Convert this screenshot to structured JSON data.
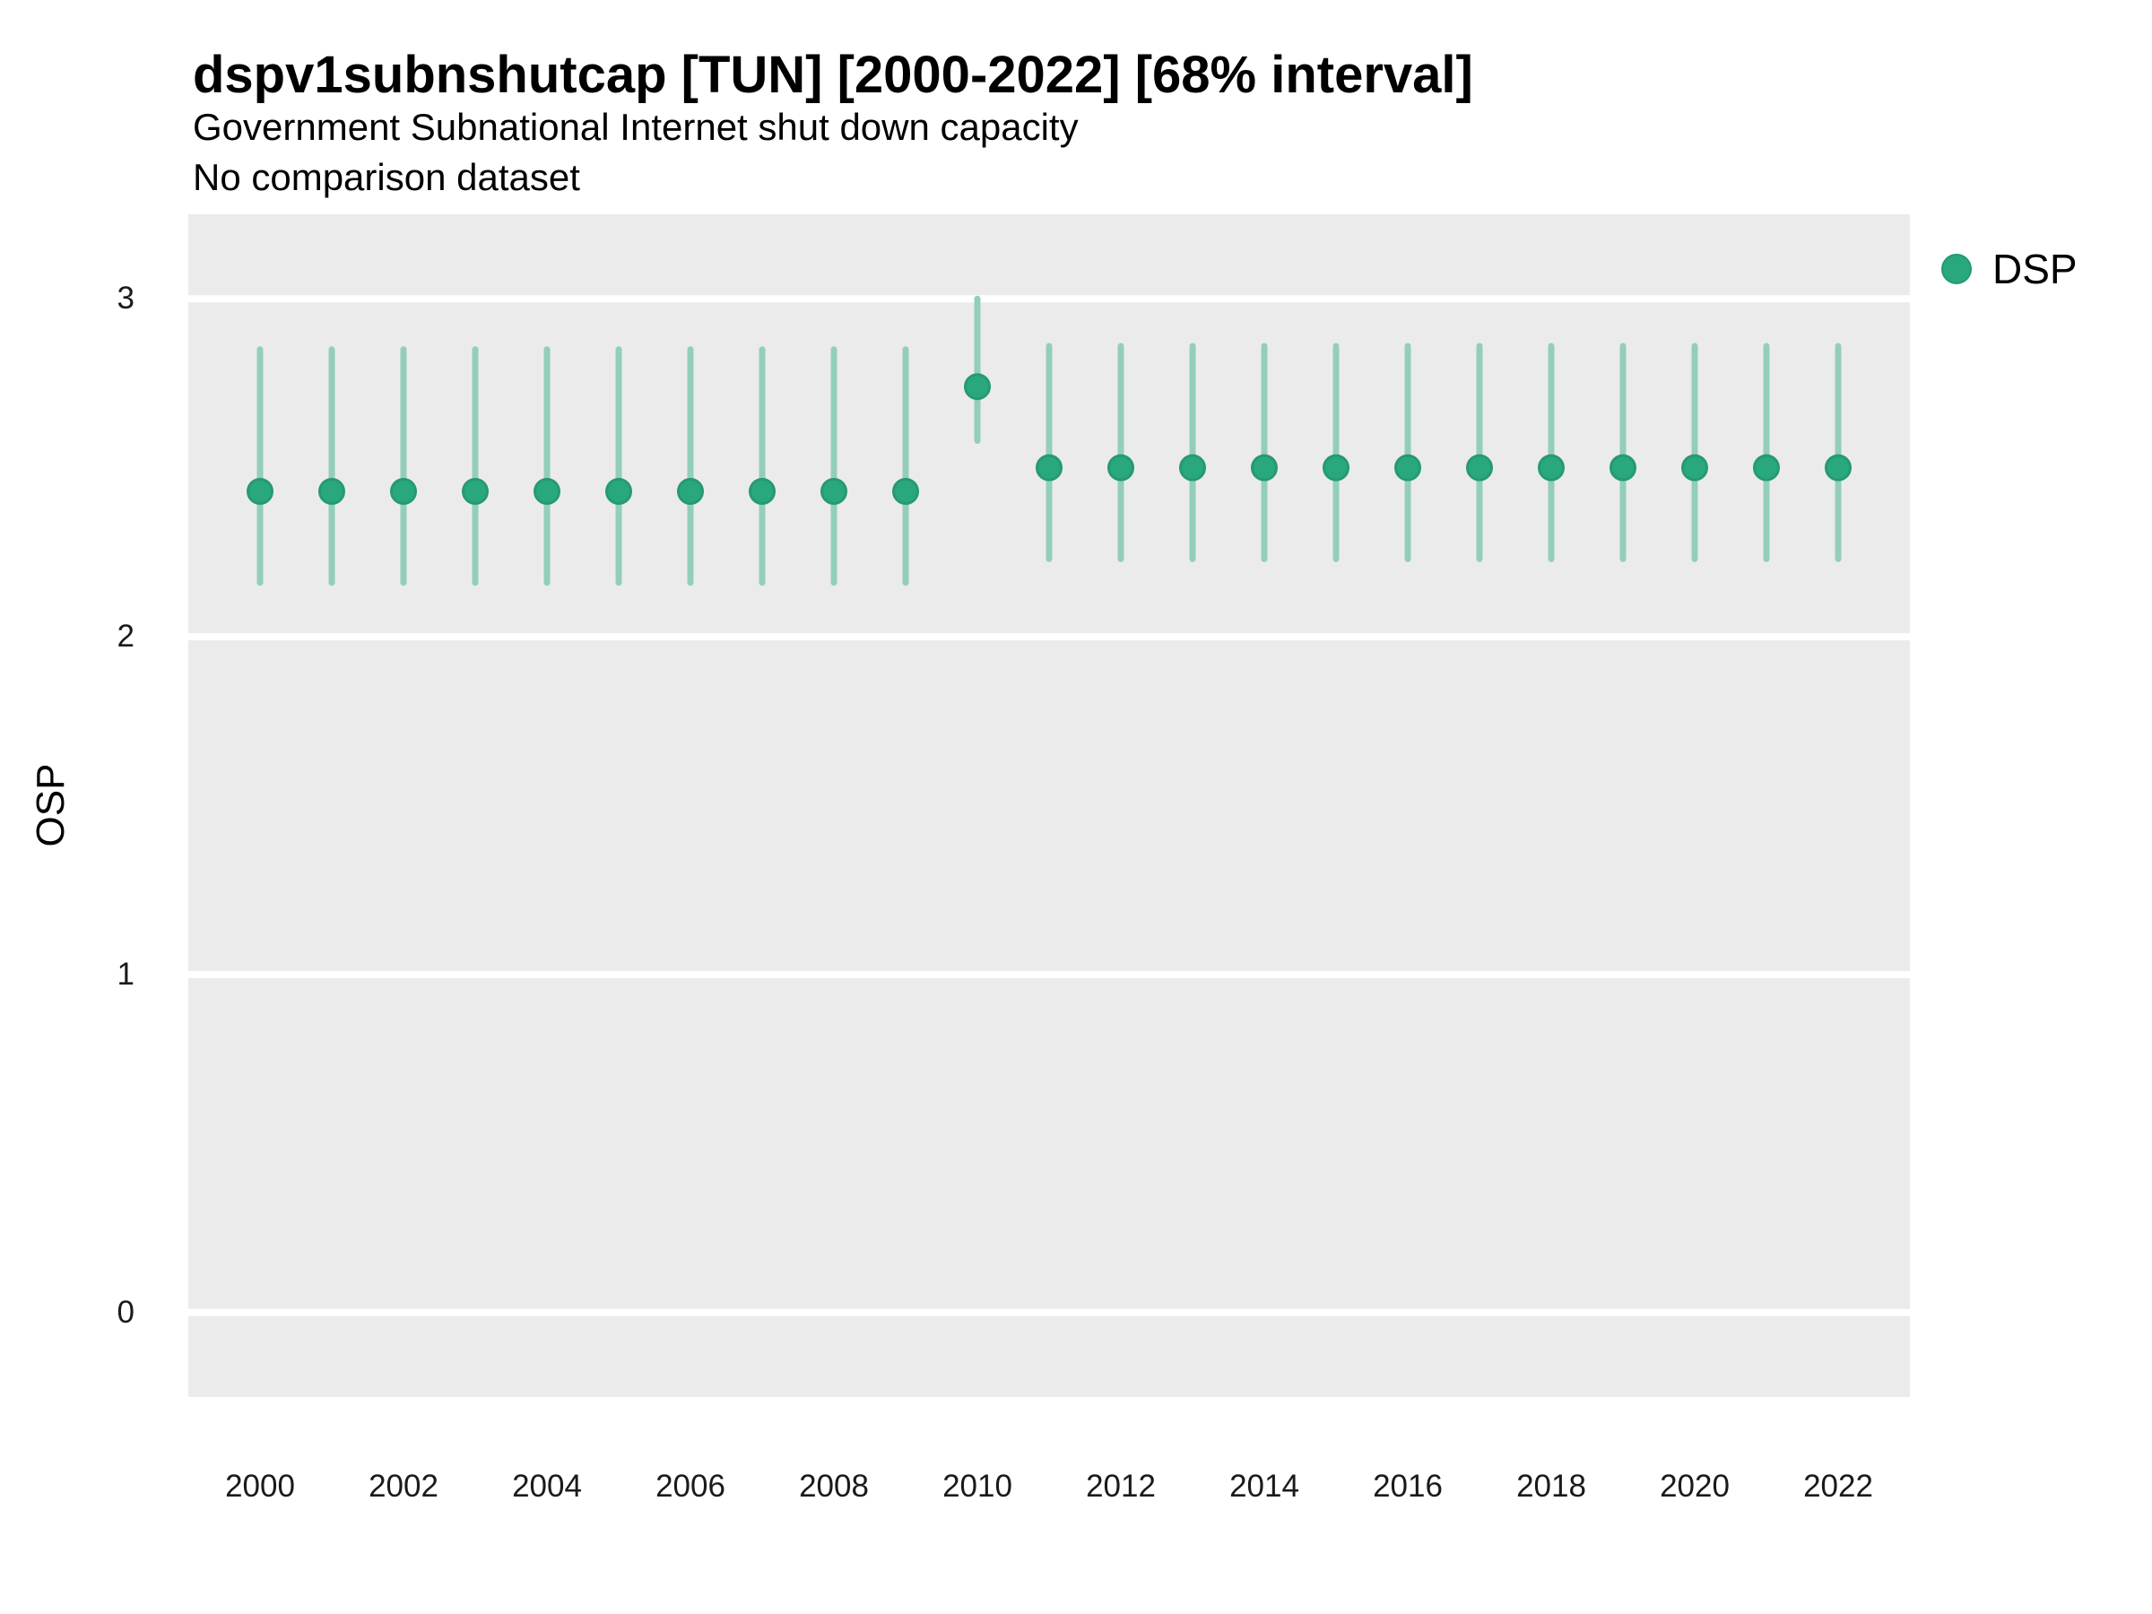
{
  "header": {
    "title": "dspv1subnshutcap [TUN] [2000-2022] [68% interval]",
    "subtitle": "Government Subnational Internet shut down capacity",
    "comparison_note": "No comparison dataset"
  },
  "legend": {
    "items": [
      {
        "label": "DSP",
        "color": "#2aa87d"
      }
    ]
  },
  "chart_data": {
    "type": "pointrange",
    "title": "dspv1subnshutcap [TUN] [2000-2022] [68% interval]",
    "subtitle": "Government Subnational Internet shut down capacity",
    "note": "No comparison dataset",
    "interval_label": "68% interval",
    "xlabel": "",
    "ylabel": "OSP",
    "x": [
      2000,
      2001,
      2002,
      2003,
      2004,
      2005,
      2006,
      2007,
      2008,
      2009,
      2010,
      2011,
      2012,
      2013,
      2014,
      2015,
      2016,
      2017,
      2018,
      2019,
      2020,
      2021,
      2022
    ],
    "series": [
      {
        "name": "DSP",
        "estimates": [
          2.43,
          2.43,
          2.43,
          2.43,
          2.43,
          2.43,
          2.43,
          2.43,
          2.43,
          2.43,
          2.74,
          2.5,
          2.5,
          2.5,
          2.5,
          2.5,
          2.5,
          2.5,
          2.5,
          2.5,
          2.5,
          2.5,
          2.5
        ],
        "lower": [
          2.16,
          2.16,
          2.16,
          2.16,
          2.16,
          2.16,
          2.16,
          2.16,
          2.16,
          2.16,
          2.58,
          2.23,
          2.23,
          2.23,
          2.23,
          2.23,
          2.23,
          2.23,
          2.23,
          2.23,
          2.23,
          2.23,
          2.23
        ],
        "upper": [
          2.85,
          2.85,
          2.85,
          2.85,
          2.85,
          2.85,
          2.85,
          2.85,
          2.85,
          2.85,
          3.0,
          2.86,
          2.86,
          2.86,
          2.86,
          2.86,
          2.86,
          2.86,
          2.86,
          2.86,
          2.86,
          2.86,
          2.86
        ]
      }
    ],
    "xticks": [
      2000,
      2002,
      2004,
      2006,
      2008,
      2010,
      2012,
      2014,
      2016,
      2018,
      2020,
      2022
    ],
    "yticks": [
      3,
      2,
      1,
      0
    ],
    "xlim": [
      1999,
      2023
    ],
    "ylim": [
      -0.25,
      3.25
    ],
    "grid": "horizontal",
    "legend_position": "right",
    "colors": {
      "point": "#2aa87d",
      "point_border": "#259a72",
      "interval": "#93cfb8",
      "panel_bg": "#ebebeb",
      "grid": "#ffffff",
      "tick_text": "#1a1a1a",
      "text": "#000000"
    }
  }
}
